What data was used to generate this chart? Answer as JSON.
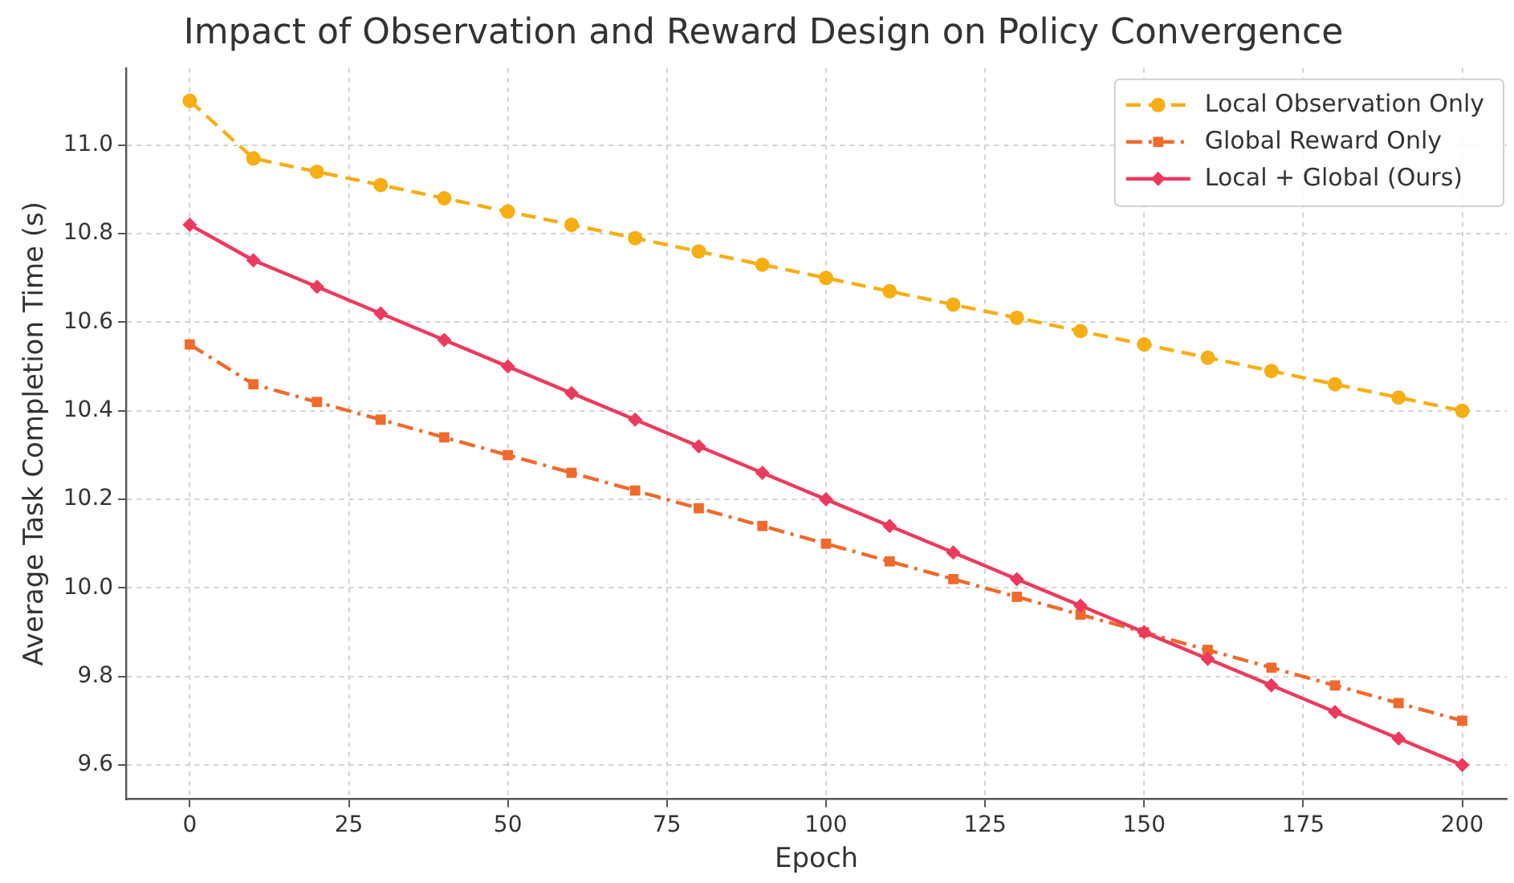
{
  "chart_data": {
    "type": "line",
    "title": "Impact of Observation and Reward Design on Policy Convergence",
    "xlabel": "Epoch",
    "ylabel": "Average Task Completion Time (s)",
    "x": [
      0,
      10,
      20,
      30,
      40,
      50,
      60,
      70,
      80,
      90,
      100,
      110,
      120,
      130,
      140,
      150,
      160,
      170,
      180,
      190,
      200
    ],
    "series": [
      {
        "name": "Local Observation Only",
        "color": "#f7ae14",
        "marker": "circle",
        "line_style": "dashed",
        "values": [
          11.1,
          10.97,
          10.94,
          10.91,
          10.88,
          10.85,
          10.82,
          10.79,
          10.76,
          10.73,
          10.7,
          10.67,
          10.64,
          10.61,
          10.58,
          10.55,
          10.52,
          10.49,
          10.46,
          10.43,
          10.4
        ]
      },
      {
        "name": "Global Reward Only",
        "color": "#ef6a2c",
        "marker": "square",
        "line_style": "dashdot",
        "values": [
          10.55,
          10.46,
          10.42,
          10.38,
          10.34,
          10.3,
          10.26,
          10.22,
          10.18,
          10.14,
          10.1,
          10.06,
          10.02,
          9.98,
          9.94,
          9.9,
          9.86,
          9.82,
          9.78,
          9.74,
          9.7
        ]
      },
      {
        "name": "Local + Global (Ours)",
        "color": "#ec3a5e",
        "marker": "diamond",
        "line_style": "solid",
        "values": [
          10.82,
          10.74,
          10.68,
          10.62,
          10.56,
          10.5,
          10.44,
          10.38,
          10.32,
          10.26,
          10.2,
          10.14,
          10.08,
          10.02,
          9.96,
          9.9,
          9.84,
          9.78,
          9.72,
          9.66,
          9.6
        ]
      }
    ],
    "xlim": [
      -10,
      207
    ],
    "xticks": [
      0,
      25,
      50,
      75,
      100,
      125,
      150,
      175,
      200
    ],
    "ylim": [
      9.523,
      11.174
    ],
    "yticks": [
      9.6,
      9.8,
      {
        "value": 10,
        "label": "10.0"
      },
      10.2,
      10.4,
      10.6,
      10.8,
      {
        "value": 11,
        "label": "11.0"
      }
    ],
    "grid": true,
    "legend": "top right"
  }
}
